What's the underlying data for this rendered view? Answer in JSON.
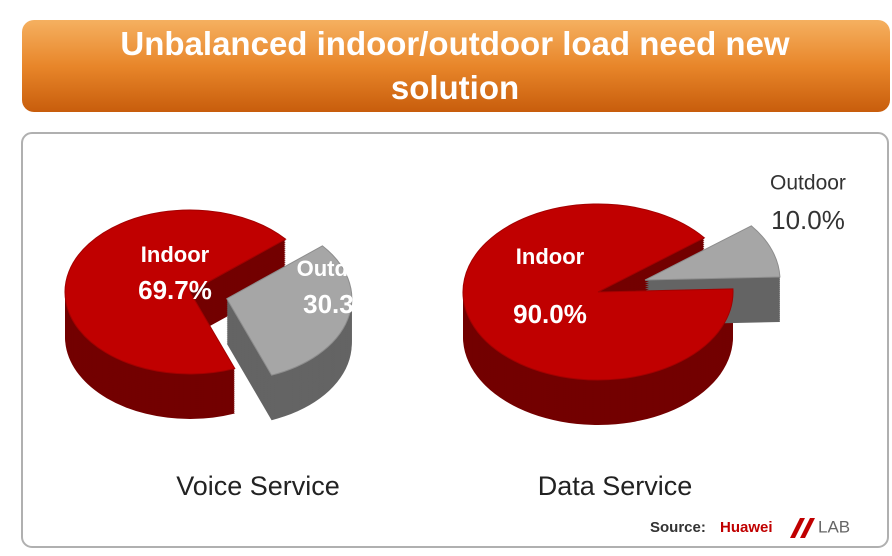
{
  "title": "Unbalanced indoor/outdoor load need new solution",
  "chart_data": [
    {
      "type": "pie",
      "title": "Voice Service",
      "categories": [
        "Indoor",
        "Outdoor"
      ],
      "values": [
        69.7,
        30.3
      ],
      "value_labels": [
        "69.7%",
        "30.3%"
      ],
      "colors": [
        "#c00000",
        "#a6a6a6"
      ]
    },
    {
      "type": "pie",
      "title": "Data Service",
      "categories": [
        "Indoor",
        "Outdoor"
      ],
      "values": [
        90.0,
        10.0
      ],
      "value_labels": [
        "90.0%",
        "10.0%"
      ],
      "colors": [
        "#c00000",
        "#a6a6a6"
      ]
    }
  ],
  "source": {
    "label": "Source:",
    "brand": "Huawei",
    "lab": "LAB"
  }
}
